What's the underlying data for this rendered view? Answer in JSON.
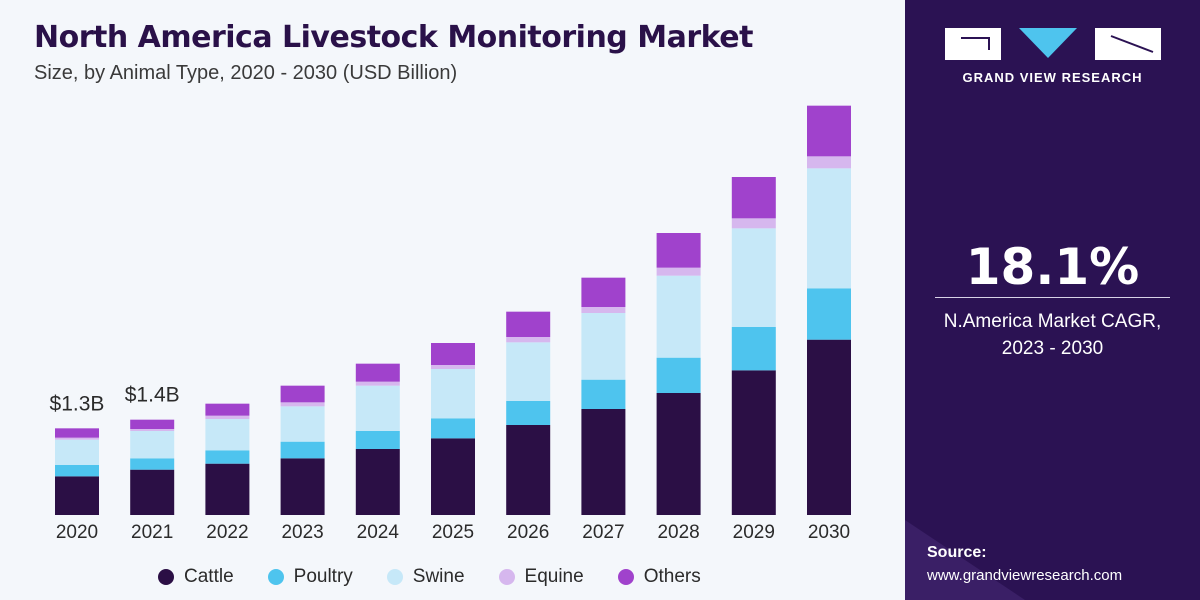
{
  "header": {
    "title": "North America Livestock Monitoring Market",
    "subtitle": "Size, by Animal Type, 2020 - 2030 (USD Billion)"
  },
  "sidebar": {
    "brand": "GRAND VIEW RESEARCH",
    "cagr_value": "18.1%",
    "cagr_label_line1": "N.America Market CAGR,",
    "cagr_label_line2": "2023 - 2030",
    "source_label": "Source:",
    "source_url": "www.grandviewresearch.com"
  },
  "colors": {
    "Cattle": "#2b0f45",
    "Poultry": "#4ec4ee",
    "Swine": "#c6e8f8",
    "Equine": "#d6b7ee",
    "Others": "#a042cc",
    "panel": "#2b1253",
    "title": "#2a1149"
  },
  "chart_data": {
    "type": "bar",
    "stacked": true,
    "categories": [
      "2020",
      "2021",
      "2022",
      "2023",
      "2024",
      "2025",
      "2026",
      "2027",
      "2028",
      "2029",
      "2030"
    ],
    "series": [
      {
        "name": "Cattle",
        "values": [
          0.58,
          0.68,
          0.77,
          0.85,
          0.99,
          1.15,
          1.35,
          1.59,
          1.83,
          2.17,
          2.63
        ]
      },
      {
        "name": "Poultry",
        "values": [
          0.17,
          0.17,
          0.2,
          0.25,
          0.27,
          0.3,
          0.36,
          0.44,
          0.53,
          0.65,
          0.77
        ]
      },
      {
        "name": "Swine",
        "values": [
          0.38,
          0.41,
          0.47,
          0.53,
          0.68,
          0.74,
          0.88,
          1.0,
          1.23,
          1.48,
          1.8
        ]
      },
      {
        "name": "Equine",
        "values": [
          0.03,
          0.03,
          0.05,
          0.06,
          0.06,
          0.06,
          0.08,
          0.09,
          0.12,
          0.15,
          0.18
        ]
      },
      {
        "name": "Others",
        "values": [
          0.14,
          0.14,
          0.18,
          0.25,
          0.27,
          0.33,
          0.38,
          0.44,
          0.52,
          0.62,
          0.76
        ]
      }
    ],
    "annotations": [
      {
        "category": "2020",
        "label": "$1.3B"
      },
      {
        "category": "2021",
        "label": "$1.4B"
      }
    ],
    "ylim": [
      0,
      6.3
    ],
    "grid": false,
    "legend_position": "bottom"
  }
}
